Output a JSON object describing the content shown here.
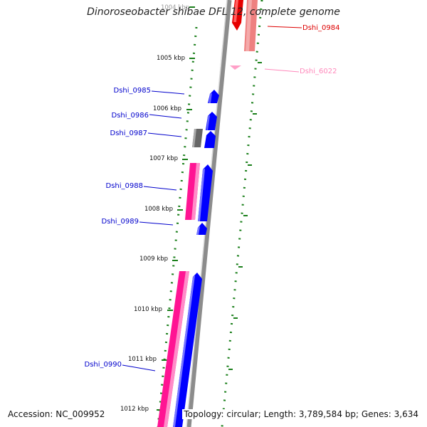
{
  "title": "Dinoroseobacter shibae DFL 12, complete genome",
  "footer": {
    "accession": "Accession: NC_009952",
    "topology": "Topology: circular; Length: 3,789,584 bp; Genes: 3,634"
  },
  "colors": {
    "backbone": "#8c8c8c",
    "tick": "#1a7f1a",
    "forward_gene": "#0000ff",
    "reverse_gene": "#ff1493",
    "pseudo_gene": "#666666",
    "highlight_gene": "#e60000",
    "highlight_gene_light": "#ee8080",
    "other_gene": "#ffa0c8",
    "label_blue": "#0000cc",
    "label_red": "#dd0000",
    "label_pink": "#ff88bb"
  },
  "kbp_labels": [
    "1004 kbp",
    "1005 kbp",
    "1006 kbp",
    "1007 kbp",
    "1008 kbp",
    "1009 kbp",
    "1010 kbp",
    "1011 kbp",
    "1012 kbp"
  ],
  "gene_labels": [
    "Dshi_0984",
    "Dshi_6022",
    "Dshi_0985",
    "Dshi_0986",
    "Dshi_0987",
    "Dshi_0988",
    "Dshi_0989",
    "Dshi_0990"
  ]
}
